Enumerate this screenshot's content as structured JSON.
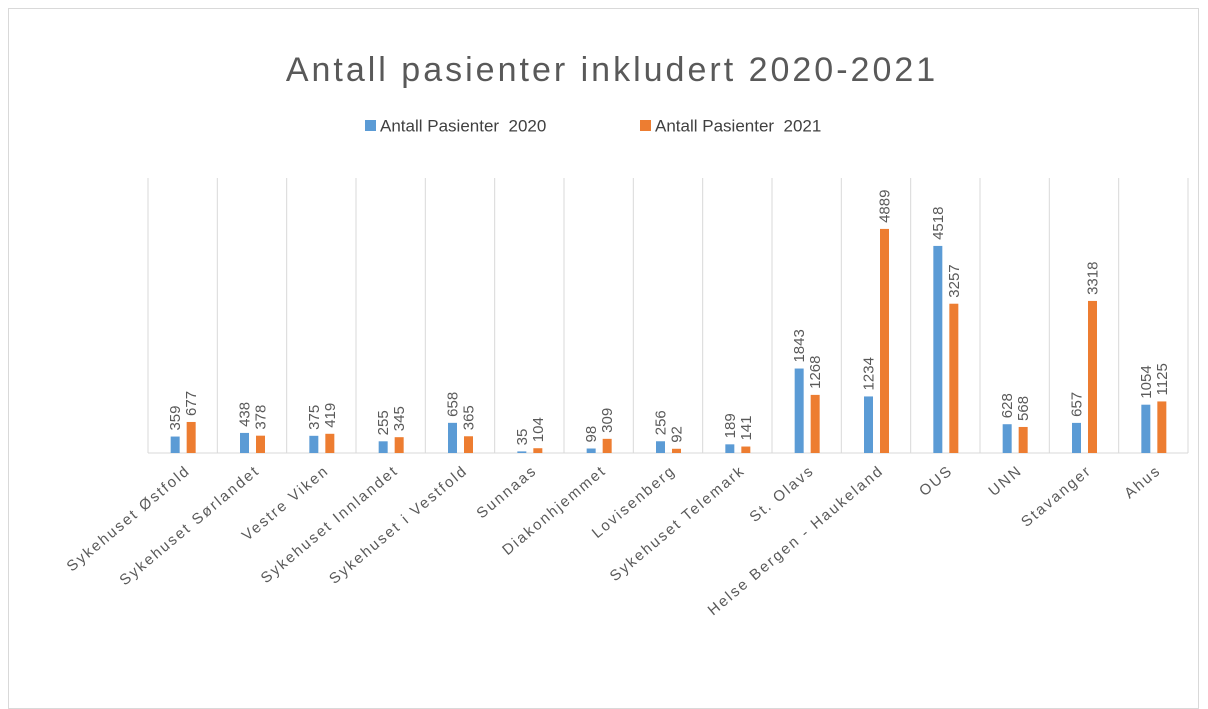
{
  "chart_data": {
    "type": "bar",
    "title": "Antall pasienter inkludert 2020-2021",
    "categories": [
      "Sykehuset Østfold",
      "Sykehuset Sørlandet",
      "Vestre Viken",
      "Sykehuset Innlandet",
      "Sykehuset i Vestfold",
      "Sunnaas",
      "Diakonhjemmet",
      "Lovisenberg",
      "Sykehuset Telemark",
      "St. Olavs",
      "Helse Bergen - Haukeland",
      "OUS",
      "UNN",
      "Stavanger",
      "Ahus"
    ],
    "series": [
      {
        "name": "Antall Pasienter  2020",
        "color": "#5b9bd5",
        "values": [
          359,
          438,
          375,
          255,
          658,
          35,
          98,
          256,
          189,
          1843,
          1234,
          4518,
          628,
          657,
          1054
        ]
      },
      {
        "name": "Antall Pasienter  2021",
        "color": "#ed7d31",
        "values": [
          677,
          378,
          419,
          345,
          365,
          104,
          309,
          92,
          141,
          1268,
          4889,
          3257,
          568,
          3318,
          1125
        ]
      }
    ],
    "ylim": [
      0,
      6000
    ],
    "grid": true,
    "legend": "top",
    "data_labels": true
  }
}
